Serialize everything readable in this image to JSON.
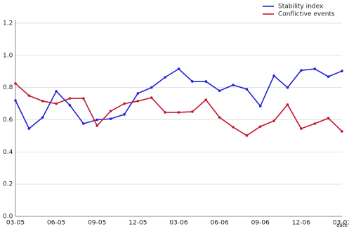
{
  "chart_data": {
    "type": "line",
    "x_label": "date",
    "categories": [
      "03-05",
      null,
      null,
      "06-05",
      null,
      null,
      "09-05",
      null,
      null,
      "12-05",
      null,
      null,
      "03-06",
      null,
      null,
      "06-06",
      null,
      null,
      "09-06",
      null,
      null,
      "12-06",
      null,
      null,
      "03-07"
    ],
    "series": [
      {
        "name": "Stability index",
        "color": "#2323d6",
        "values": [
          0.72,
          0.545,
          0.615,
          0.777,
          0.69,
          0.576,
          0.6,
          0.606,
          0.633,
          0.764,
          0.8,
          0.864,
          0.916,
          0.838,
          0.838,
          0.78,
          0.816,
          0.79,
          0.685,
          0.873,
          0.8,
          0.907,
          0.916,
          0.868,
          0.903
        ]
      },
      {
        "name": "Conflictive events",
        "color": "#c4172d",
        "values": [
          0.825,
          0.75,
          0.716,
          0.7,
          0.733,
          0.733,
          0.563,
          0.654,
          0.7,
          0.716,
          0.737,
          0.646,
          0.646,
          0.65,
          0.724,
          0.615,
          0.554,
          0.502,
          0.558,
          0.593,
          0.694,
          0.545,
          0.576,
          0.61,
          0.528
        ]
      }
    ],
    "ylim": [
      0,
      1.2
    ],
    "yticks": [
      {
        "value": 0,
        "label": "0.0"
      },
      0.2,
      0.4,
      0.6,
      0.8,
      {
        "value": 1,
        "label": "1.0"
      },
      1.2
    ],
    "grid": true,
    "legend": "top-right"
  }
}
